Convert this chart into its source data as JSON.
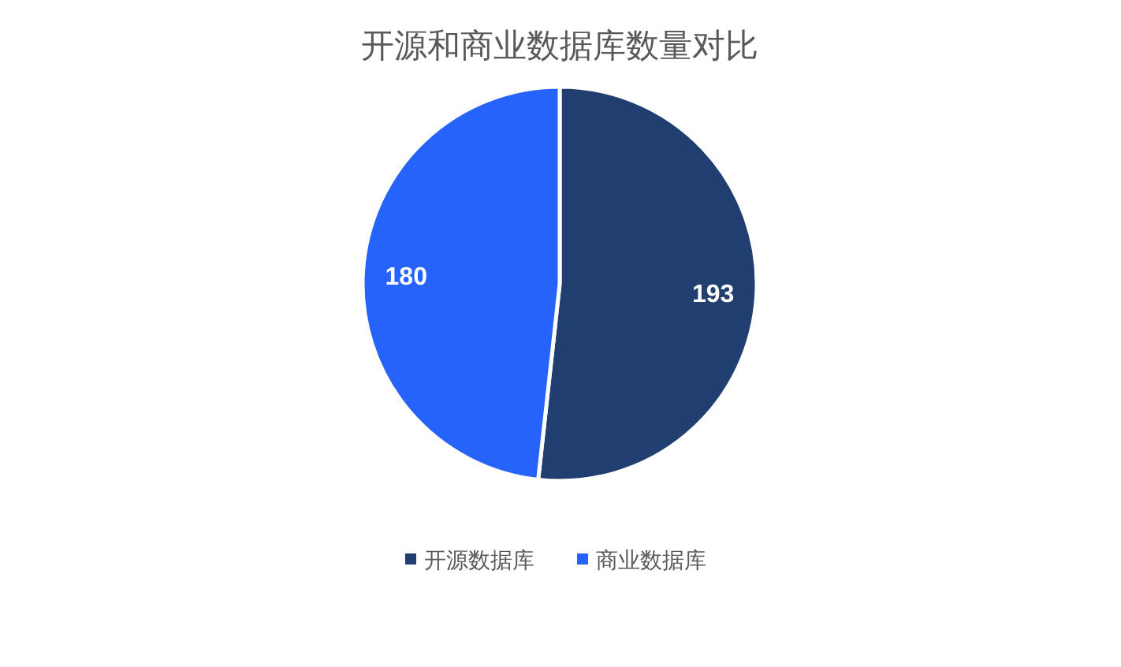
{
  "chart_data": {
    "type": "pie",
    "title": "开源和商业数据库数量对比",
    "categories": [
      "开源数据库",
      "商业数据库"
    ],
    "values": [
      193,
      180
    ],
    "colors": [
      "#203f70",
      "#2563fb"
    ],
    "data_labels": true,
    "legend": "bottom"
  }
}
